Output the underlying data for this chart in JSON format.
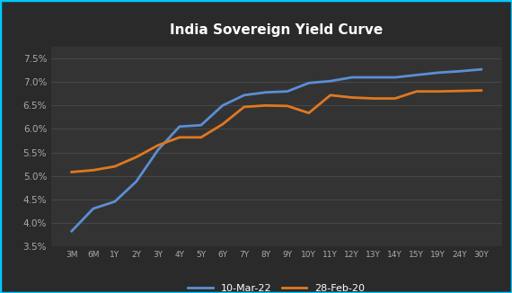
{
  "title": "India Sovereign Yield Curve",
  "background_color": "#2d2d2d",
  "plot_bg_color": "#333333",
  "outer_bg_color": "#2a2a2a",
  "border_color": "#00c8ff",
  "title_color": "#ffffff",
  "grid_color": "#4a4a4a",
  "x_labels": [
    "3M",
    "6M",
    "1Y",
    "2Y",
    "3Y",
    "4Y",
    "5Y",
    "6Y",
    "7Y",
    "8Y",
    "9Y",
    "10Y",
    "11Y",
    "12Y",
    "13Y",
    "14Y",
    "15Y",
    "19Y",
    "24Y",
    "30Y"
  ],
  "series": [
    {
      "label": "10-Mar-22",
      "color": "#5b8ed6",
      "values": [
        3.82,
        4.3,
        4.45,
        4.88,
        5.55,
        6.05,
        6.08,
        6.5,
        6.72,
        6.78,
        6.8,
        6.98,
        7.02,
        7.1,
        7.1,
        7.1,
        7.15,
        7.2,
        7.23,
        7.27
      ]
    },
    {
      "label": "28-Feb-20",
      "color": "#e07820",
      "values": [
        5.08,
        5.12,
        5.2,
        5.4,
        5.65,
        5.82,
        5.82,
        6.1,
        6.47,
        6.5,
        6.49,
        6.34,
        6.72,
        6.67,
        6.65,
        6.65,
        6.8,
        6.8,
        6.81,
        6.82
      ]
    }
  ],
  "ylim": [
    3.5,
    7.75
  ],
  "yticks": [
    3.5,
    4.0,
    4.5,
    5.0,
    5.5,
    6.0,
    6.5,
    7.0,
    7.5
  ],
  "legend_color": "#ffffff",
  "tick_color": "#aaaaaa",
  "linewidth": 2.0,
  "figsize": [
    5.7,
    3.26
  ],
  "dpi": 100
}
